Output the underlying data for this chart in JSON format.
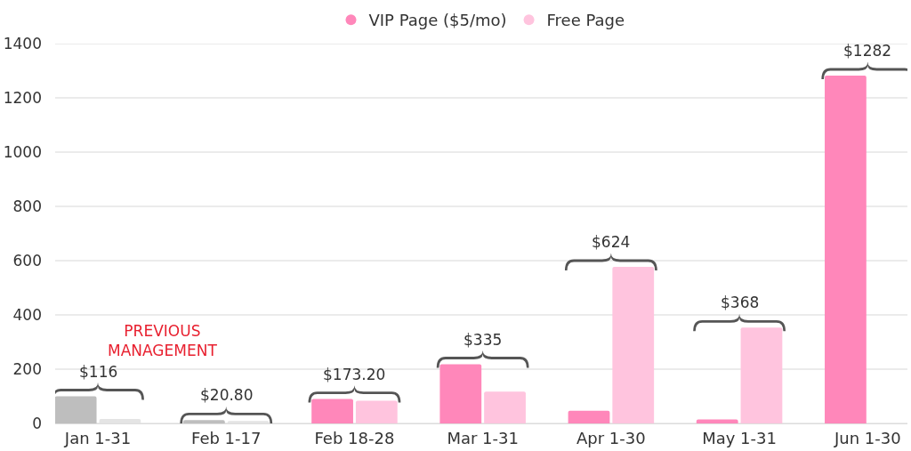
{
  "chart_data": {
    "type": "bar",
    "categories": [
      "Jan 1-31",
      "Feb 1-17",
      "Feb 18-28",
      "Mar 1-31",
      "Apr 1-30",
      "May 1-31",
      "Jun 1-30"
    ],
    "series": [
      {
        "name": "VIP Page ($5/mo)",
        "color": "#ff87ba",
        "colors": [
          "#bebebe",
          "#bebebe",
          "#ff87ba",
          "#ff87ba",
          "#ff87ba",
          "#ff87ba",
          "#ff87ba"
        ],
        "values": [
          100,
          12,
          90,
          218,
          47,
          15,
          1282
        ]
      },
      {
        "name": "Free Page",
        "color": "#ffc4de",
        "colors": [
          "#e4e4e4",
          "#e4e4e4",
          "#ffc4de",
          "#ffc4de",
          "#ffc4de",
          "#ffc4de",
          "#ffc4de"
        ],
        "values": [
          16,
          8.8,
          83.2,
          117,
          577,
          353,
          0
        ]
      }
    ],
    "ylim": [
      0,
      1400
    ],
    "yticks": [
      0,
      200,
      400,
      600,
      800,
      1000,
      1200,
      1400
    ],
    "grid": "y",
    "legend": "top",
    "totals": [
      "$116",
      "$20.80",
      "$173.20",
      "$335",
      "$624",
      "$368",
      "$1282"
    ],
    "annotations": [
      "PREVIOUS\nMANAGEMENT"
    ]
  }
}
